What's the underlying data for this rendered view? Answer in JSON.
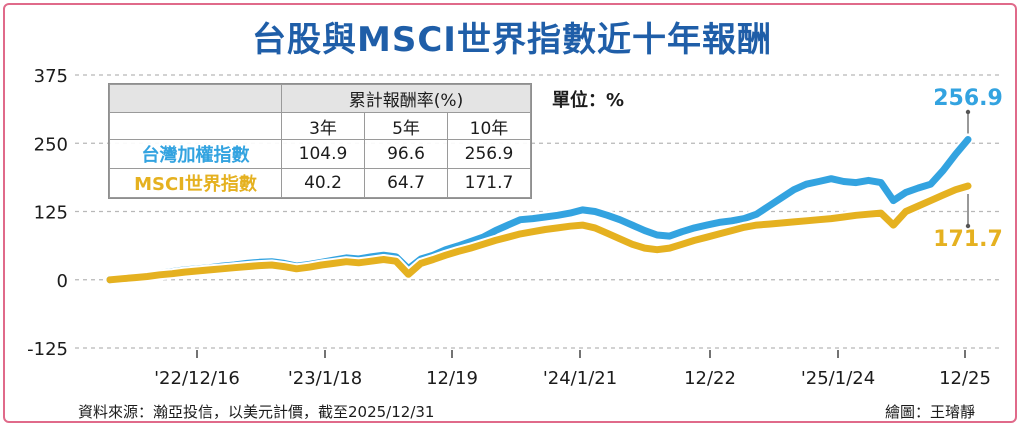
{
  "chart_data": {
    "type": "line",
    "title": "台股與MSCI世界指數近十年報酬",
    "unit_label": "單位：%",
    "ylim": [
      -125,
      375
    ],
    "yticks": [
      "375",
      "250",
      "125",
      "0",
      "-125"
    ],
    "ytick_values": [
      375,
      250,
      125,
      0,
      -125
    ],
    "xtick_labels": [
      "'22/12/16",
      "'23/1/18",
      "12/19",
      "'24/1/21",
      "12/22",
      "'25/1/24",
      "12/25"
    ],
    "grid": "horizontal dashed",
    "end_labels": {
      "taiwan": "256.9",
      "msci": "171.7"
    },
    "series": [
      {
        "name": "台灣加權指數",
        "color": "#33a3e0",
        "values": [
          0,
          3,
          6,
          9,
          12,
          15,
          18,
          20,
          22,
          25,
          27,
          30,
          32,
          33,
          30,
          25,
          28,
          32,
          36,
          40,
          38,
          42,
          45,
          42,
          20,
          38,
          45,
          55,
          62,
          70,
          78,
          90,
          100,
          110,
          112,
          115,
          118,
          122,
          128,
          125,
          118,
          110,
          100,
          90,
          82,
          80,
          88,
          95,
          100,
          105,
          108,
          112,
          120,
          135,
          150,
          165,
          175,
          180,
          185,
          180,
          178,
          182,
          178,
          145,
          160,
          168,
          175,
          200,
          230,
          256.9
        ]
      },
      {
        "name": "MSCI世界指數",
        "color": "#e5b120",
        "values": [
          0,
          2,
          4,
          6,
          9,
          11,
          14,
          16,
          18,
          20,
          22,
          24,
          26,
          27,
          24,
          20,
          23,
          27,
          30,
          33,
          31,
          34,
          37,
          34,
          10,
          30,
          37,
          45,
          52,
          58,
          65,
          72,
          78,
          84,
          88,
          92,
          95,
          98,
          100,
          95,
          85,
          75,
          65,
          58,
          55,
          58,
          65,
          72,
          78,
          84,
          90,
          96,
          100,
          102,
          104,
          106,
          108,
          110,
          112,
          115,
          118,
          120,
          122,
          100,
          125,
          135,
          145,
          155,
          165,
          171.7
        ]
      }
    ]
  },
  "table": {
    "header_group": "累計報酬率(%)",
    "columns": [
      "3年",
      "5年",
      "10年"
    ],
    "rows": [
      {
        "label": "台灣加權指數",
        "label_color": "#33a3e0",
        "values": [
          "104.9",
          "96.6",
          "256.9"
        ]
      },
      {
        "label": "MSCI世界指數",
        "label_color": "#e5b120",
        "values": [
          "40.2",
          "64.7",
          "171.7"
        ]
      }
    ]
  },
  "footer": {
    "source": "資料來源：瀚亞投信，以美元計價，截至2025/12/31",
    "credit": "繪圖：王璿靜"
  },
  "colors": {
    "title": "#1f5ea8",
    "frame": "#e06a8a",
    "grid": "#b8b8b8"
  }
}
